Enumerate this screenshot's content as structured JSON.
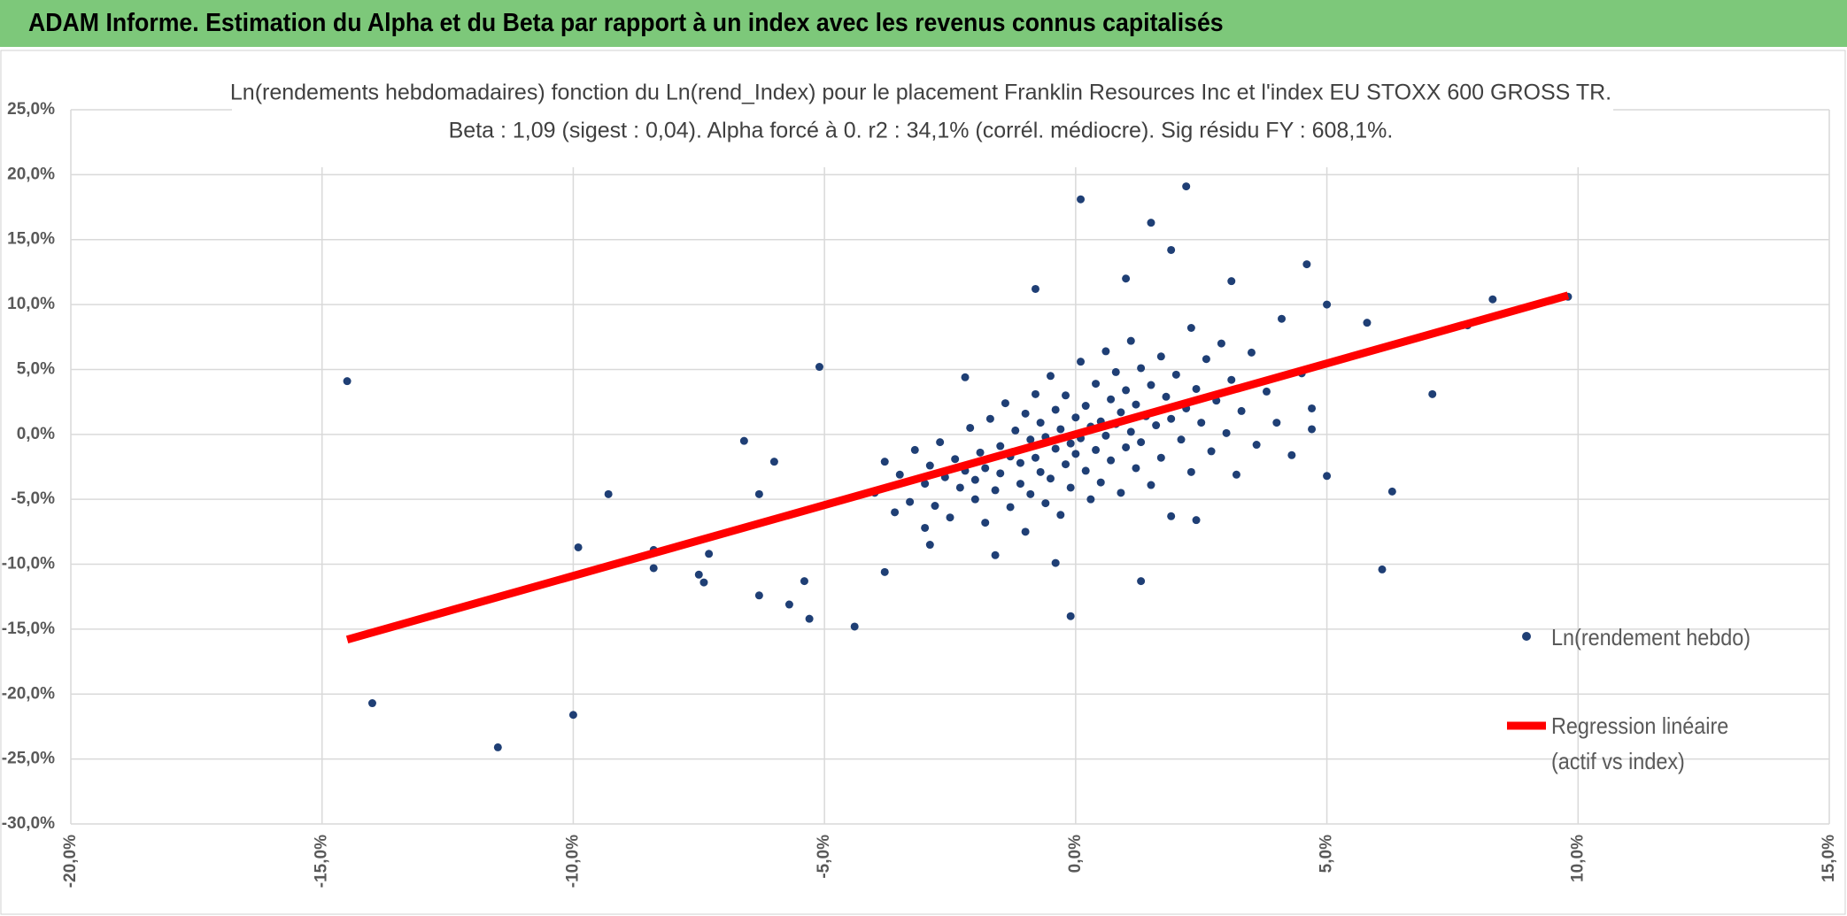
{
  "header": {
    "title": "ADAM Informe. Estimation du Alpha et du Beta par rapport à un index avec les revenus connus capitalisés"
  },
  "chart_data": {
    "type": "scatter",
    "title": "Ln(rendements hebdomadaires) fonction du Ln(rend_Index) pour le placement Franklin Resources Inc et l'index EU STOXX 600 GROSS TR.",
    "subtitle": "Beta : 1,09 (sigest : 0,04). Alpha forcé à 0. r2 : 34,1% (corrél. médiocre). Sig résidu FY : 608,1%.",
    "xlim": [
      -20,
      15
    ],
    "xticks": [
      {
        "value": -20,
        "label": "-20,0%"
      },
      {
        "value": -15,
        "label": "-15,0%"
      },
      {
        "value": -10,
        "label": "-10,0%"
      },
      {
        "value": -5,
        "label": "-5,0%"
      },
      {
        "value": 0,
        "label": "0,0%"
      },
      {
        "value": 5,
        "label": "5,0%"
      },
      {
        "value": 10,
        "label": "10,0%"
      },
      {
        "value": 15,
        "label": "15,0%"
      }
    ],
    "ylim": [
      -30,
      25
    ],
    "yticks": [
      {
        "value": -30,
        "label": "-30,0%"
      },
      {
        "value": -25,
        "label": "-25,0%"
      },
      {
        "value": -20,
        "label": "-20,0%"
      },
      {
        "value": -15,
        "label": "-15,0%"
      },
      {
        "value": -10,
        "label": "-10,0%"
      },
      {
        "value": -5,
        "label": "-5,0%"
      },
      {
        "value": 0,
        "label": "0,0%"
      },
      {
        "value": 5,
        "label": "5,0%"
      },
      {
        "value": 10,
        "label": "10,0%"
      },
      {
        "value": 15,
        "label": "15,0%"
      },
      {
        "value": 20,
        "label": "20,0%"
      },
      {
        "value": 25,
        "label": "25,0%"
      }
    ],
    "grid": true,
    "legend": "right",
    "series": [
      {
        "name": "Ln(rendement hebdo)",
        "color": "#1f3f75",
        "marker": "point",
        "x": [
          -14.5,
          -14.0,
          -11.5,
          -10.0,
          -9.9,
          -9.3,
          -8.4,
          -8.4,
          -7.5,
          -7.4,
          -7.3,
          -6.6,
          -6.3,
          -6.3,
          -6.0,
          -5.7,
          -5.4,
          -5.3,
          -5.1,
          -4.4,
          -0.1,
          0.1,
          2.2,
          1.5,
          1.9,
          4.6,
          3.1,
          1.0,
          -0.8,
          5.0,
          5.8,
          8.3,
          7.8,
          9.8,
          7.1,
          6.3,
          6.1,
          5.0,
          4.7,
          1.3,
          2.4,
          -3.8,
          -2.9,
          -1.6,
          -0.4,
          -2.2,
          -4,
          -3.8,
          -3.6,
          -3.5,
          -3.3,
          -3.2,
          -3,
          -3,
          -2.9,
          -2.8,
          -2.7,
          -2.6,
          -2.5,
          -2.4,
          -2.3,
          -2.2,
          -2.1,
          -2,
          -2,
          -1.9,
          -1.8,
          -1.8,
          -1.7,
          -1.6,
          -1.5,
          -1.5,
          -1.4,
          -1.3,
          -1.3,
          -1.2,
          -1.1,
          -1.1,
          -1,
          -1,
          -0.9,
          -0.9,
          -0.8,
          -0.8,
          -0.7,
          -0.7,
          -0.6,
          -0.6,
          -0.5,
          -0.5,
          -0.4,
          -0.4,
          -0.3,
          -0.3,
          -0.2,
          -0.2,
          -0.1,
          -0.1,
          0,
          0,
          0.1,
          0.1,
          0.2,
          0.2,
          0.3,
          0.3,
          0.4,
          0.4,
          0.5,
          0.5,
          0.6,
          0.6,
          0.7,
          0.7,
          0.8,
          0.8,
          0.9,
          0.9,
          1,
          1,
          1.1,
          1.1,
          1.2,
          1.2,
          1.3,
          1.3,
          1.4,
          1.5,
          1.5,
          1.6,
          1.7,
          1.7,
          1.8,
          1.9,
          1.9,
          2,
          2.1,
          2.2,
          2.3,
          2.3,
          2.4,
          2.5,
          2.6,
          2.7,
          2.8,
          2.9,
          3,
          3.1,
          3.2,
          3.3,
          3.5,
          3.6,
          3.8,
          4,
          4.1,
          4.3,
          4.5,
          4.7
        ],
        "y": [
          4.1,
          -20.7,
          -24.1,
          -21.6,
          -8.7,
          -4.6,
          -8.9,
          -10.3,
          -10.8,
          -11.4,
          -9.2,
          -0.5,
          -4.6,
          -12.4,
          -2.1,
          -13.1,
          -11.3,
          -14.2,
          5.2,
          -14.8,
          -14.0,
          18.1,
          19.1,
          16.3,
          14.2,
          13.1,
          11.8,
          12.0,
          11.2,
          10.0,
          8.6,
          10.4,
          8.4,
          10.6,
          3.1,
          -4.4,
          -10.4,
          -3.2,
          2.0,
          -11.3,
          -6.6,
          -10.6,
          -8.5,
          -9.3,
          -9.9,
          4.4,
          -4.5,
          -2.1,
          -6.0,
          -3.1,
          -5.2,
          -1.2,
          -3.8,
          -7.2,
          -2.4,
          -5.5,
          -0.6,
          -3.3,
          -6.4,
          -1.9,
          -4.1,
          -2.8,
          0.5,
          -5.0,
          -3.5,
          -1.4,
          -6.8,
          -2.6,
          1.2,
          -4.3,
          -0.9,
          -3.0,
          2.4,
          -5.6,
          -1.7,
          0.3,
          -3.8,
          -2.2,
          1.6,
          -7.5,
          -0.4,
          -4.6,
          3.1,
          -1.8,
          -2.9,
          0.9,
          -5.3,
          -0.2,
          4.5,
          -3.4,
          1.9,
          -1.1,
          -6.2,
          0.4,
          -2.3,
          3.0,
          -0.7,
          -4.1,
          1.3,
          -1.5,
          5.6,
          -0.3,
          -2.8,
          2.2,
          0.6,
          -5.0,
          3.9,
          -1.2,
          1.0,
          -3.7,
          6.4,
          -0.1,
          2.7,
          -2.0,
          0.8,
          4.8,
          -4.5,
          1.7,
          -1.0,
          3.4,
          7.2,
          0.2,
          -2.6,
          2.3,
          5.1,
          -0.6,
          1.4,
          -3.9,
          3.8,
          0.7,
          6.0,
          -1.8,
          2.9,
          -6.3,
          1.2,
          4.6,
          -0.4,
          2.0,
          8.2,
          -2.9,
          3.5,
          0.9,
          5.8,
          -1.3,
          2.6,
          7.0,
          0.1,
          4.2,
          -3.1,
          1.8,
          6.3,
          -0.8,
          3.3,
          0.9,
          8.9,
          -1.6,
          4.7,
          0.4
        ]
      },
      {
        "name": "Regression linéaire (actif vs index)",
        "color": "#ff0000",
        "marker": "line",
        "x": [
          -14.5,
          9.8
        ],
        "y": [
          -15.8,
          10.7
        ]
      }
    ]
  }
}
